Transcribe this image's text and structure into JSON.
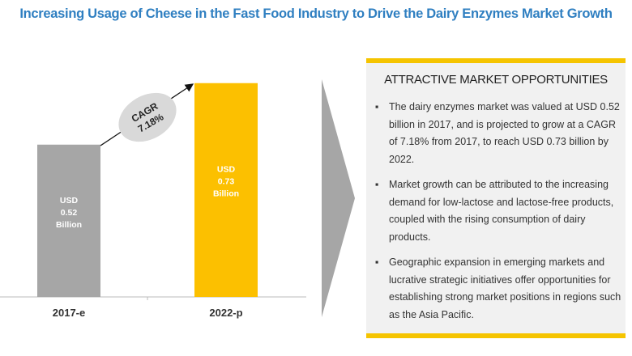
{
  "title": "Increasing Usage of Cheese in the Fast Food Industry to Drive the Dairy Enzymes Market Growth",
  "chart_data": {
    "type": "bar",
    "categories": [
      "2017-e",
      "2022-p"
    ],
    "values": [
      0.52,
      0.73
    ],
    "unit": "USD Billion",
    "data_labels": [
      [
        "USD",
        "0.52",
        "Billion"
      ],
      [
        "USD",
        "0.73",
        "Billion"
      ]
    ],
    "bar_colors": [
      "#a6a6a6",
      "#fcc000"
    ],
    "annotation": [
      "CAGR",
      "7.18%"
    ],
    "xlabel": "",
    "ylabel": "",
    "ylim": [
      0,
      1.0144
    ],
    "grid": false
  },
  "panel": {
    "heading": "ATTRACTIVE MARKET OPPORTUNITIES",
    "bullets": [
      "The dairy enzymes market was valued at USD 0.52 billion in 2017, and is projected to grow at a CAGR of 7.18% from 2017, to reach USD 0.73 billion by 2022.",
      "Market growth can be attributed to the increasing demand for low-lactose and lactose-free products, coupled with the rising consumption of dairy products.",
      "Geographic expansion in emerging markets and lucrative strategic initiatives offer opportunities for establishing strong market positions in regions such as the Asia Pacific."
    ],
    "accent": "#f5c400"
  }
}
